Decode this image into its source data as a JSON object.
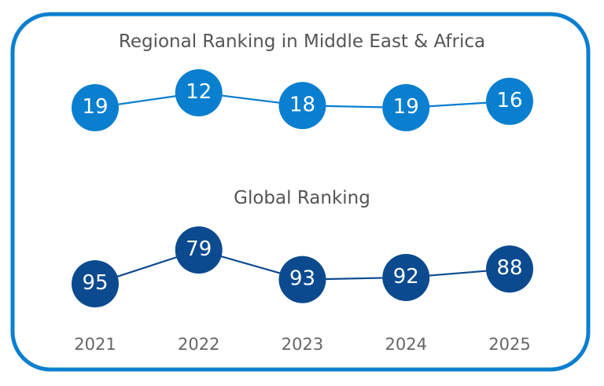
{
  "chart_data": {
    "type": "line",
    "x": [
      "2021",
      "2022",
      "2023",
      "2024",
      "2025"
    ],
    "series": [
      {
        "name": "Regional Ranking in Middle East & Africa",
        "title": "Regional Ranking in Middle East & Africa",
        "values": [
          19,
          12,
          18,
          19,
          16
        ],
        "color": "#0a7fcf"
      },
      {
        "name": "Global Ranking",
        "title": "Global Ranking",
        "values": [
          95,
          79,
          93,
          92,
          88
        ],
        "color": "#0b4a8f"
      }
    ],
    "frame_color": "#0a7fcf",
    "xlabel": "",
    "ylabel": "",
    "grid": false
  }
}
